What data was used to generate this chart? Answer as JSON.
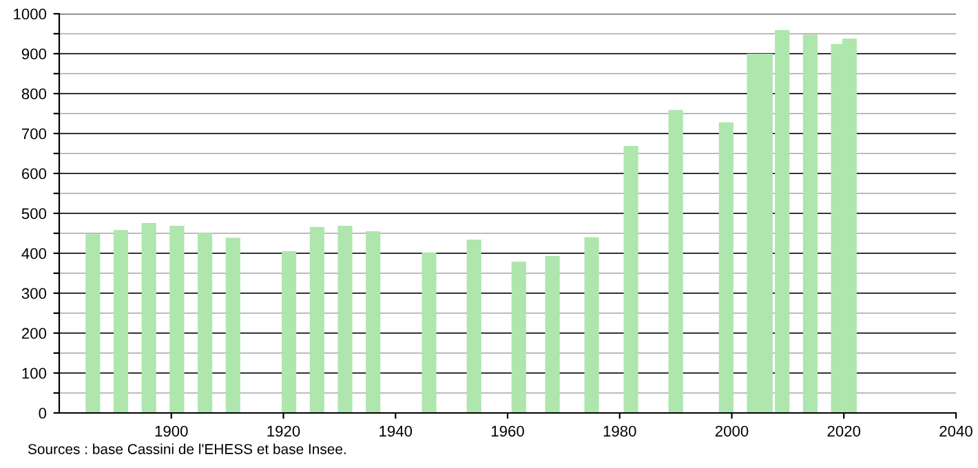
{
  "chart_data": {
    "type": "bar",
    "x": [
      1886,
      1891,
      1896,
      1901,
      1906,
      1911,
      1921,
      1926,
      1931,
      1936,
      1946,
      1954,
      1962,
      1968,
      1975,
      1982,
      1990,
      1999,
      2004,
      2006,
      2009,
      2014,
      2019,
      2021
    ],
    "series": [
      {
        "color": "#aee6ae",
        "values": [
          448,
          458,
          476,
          469,
          451,
          439,
          405,
          466,
          469,
          455,
          402,
          434,
          379,
          393,
          440,
          669,
          759,
          728,
          900,
          900,
          959,
          948,
          924,
          938
        ]
      }
    ],
    "xlim": [
      1880,
      2040
    ],
    "xticks": [
      1900,
      1920,
      1940,
      1960,
      1980,
      2000,
      2020,
      2040
    ],
    "ylim": [
      0,
      1000
    ],
    "yticks": [
      0,
      {
        "value": 50,
        "label": null
      },
      100,
      {
        "value": 150,
        "label": null
      },
      200,
      {
        "value": 250,
        "label": null
      },
      300,
      {
        "value": 350,
        "label": null
      },
      400,
      {
        "value": 450,
        "label": null
      },
      500,
      {
        "value": 550,
        "label": null
      },
      600,
      {
        "value": 650,
        "label": null
      },
      700,
      {
        "value": 750,
        "label": null
      },
      800,
      {
        "value": 850,
        "label": null
      },
      900,
      {
        "value": 950,
        "label": null
      },
      1000
    ],
    "grid": "y",
    "annotations": [
      "Sources : base Cassini de l'EHESS et base Insee."
    ]
  }
}
